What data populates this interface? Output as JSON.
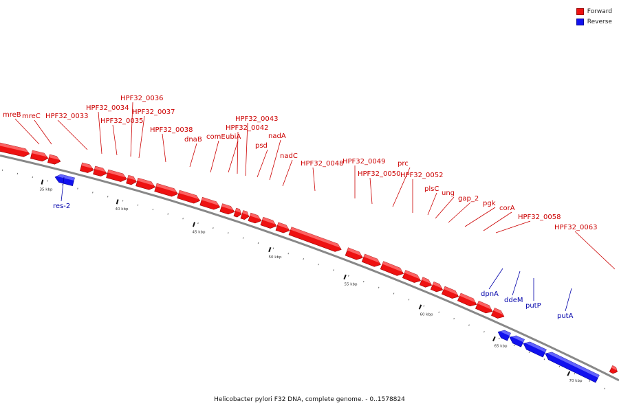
{
  "legend": {
    "items": [
      {
        "label": "Forward",
        "color": "#ee1111"
      },
      {
        "label": "Reverse",
        "color": "#1111ee"
      }
    ]
  },
  "caption": "Helicobacter pylori F32 DNA, complete genome. - 0..1578824",
  "colors": {
    "forward": "#ee1111",
    "forward_light": "#ff7777",
    "reverse": "#1111ee",
    "reverse_light": "#7777ff",
    "backbone": "#888888",
    "forward_label": "#cc0000",
    "reverse_label": "#0000aa"
  },
  "tick_labels": [
    "35 kbp",
    "40 kbp",
    "45 kbp",
    "50 kbp",
    "55 kbp",
    "60 kbp",
    "65 kbp",
    "70 kbp"
  ],
  "forward_genes": [
    "mreB",
    "mreC",
    "HPF32_0033",
    "HPF32_0034",
    "HPF32_0035",
    "HPF32_0036",
    "HPF32_0037",
    "HPF32_0038",
    "dnaB",
    "comE",
    "ubiA",
    "HPF32_0042",
    "HPF32_0043",
    "psd",
    "nadA",
    "nadC",
    "HPF32_0048",
    "HPF32_0049",
    "HPF32_0050",
    "prc",
    "HPF32_0052",
    "plsC",
    "ung",
    "gap_2",
    "pgk",
    "corA",
    "HPF32_0058",
    "HPF32_0063"
  ],
  "reverse_genes": [
    "res-2",
    "dpnA",
    "ddeM",
    "putP",
    "putA"
  ]
}
